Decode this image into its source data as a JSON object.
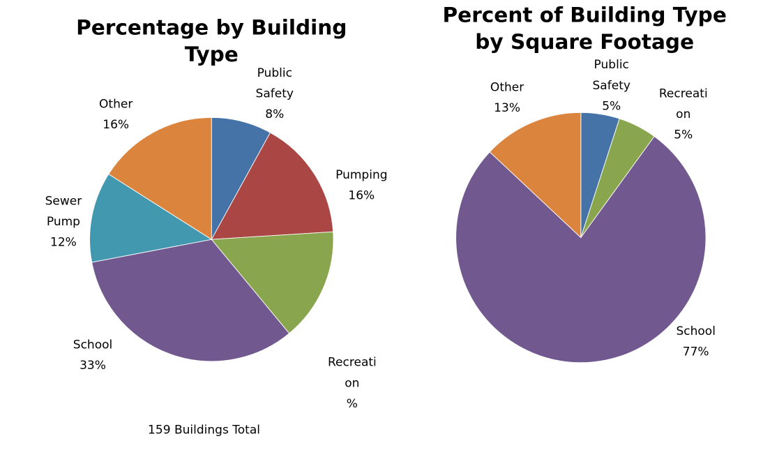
{
  "chart_data": [
    {
      "type": "pie",
      "title": "Percentage by Building Type",
      "subtitle": "159 Buildings Total",
      "categories": [
        "Public Safety",
        "Pumping",
        "Recreation",
        "School",
        "Sewer Pump",
        "Other"
      ],
      "values": [
        8,
        16,
        15,
        33,
        12,
        16
      ],
      "value_labels": [
        "8%",
        "16%",
        "%",
        "33%",
        "12%",
        "16%"
      ],
      "colors": [
        "#4572a7",
        "#aa4643",
        "#89a54e",
        "#71588f",
        "#4198af",
        "#db843d"
      ]
    },
    {
      "type": "pie",
      "title": "Percent of Building Type by Square Footage",
      "categories": [
        "Public Safety",
        "Recreation",
        "School",
        "Other"
      ],
      "values": [
        5,
        5,
        77,
        13
      ],
      "value_labels": [
        "5%",
        "5%",
        "77%",
        "13%"
      ],
      "colors": [
        "#4572a7",
        "#89a54e",
        "#71588f",
        "#db843d"
      ]
    }
  ]
}
